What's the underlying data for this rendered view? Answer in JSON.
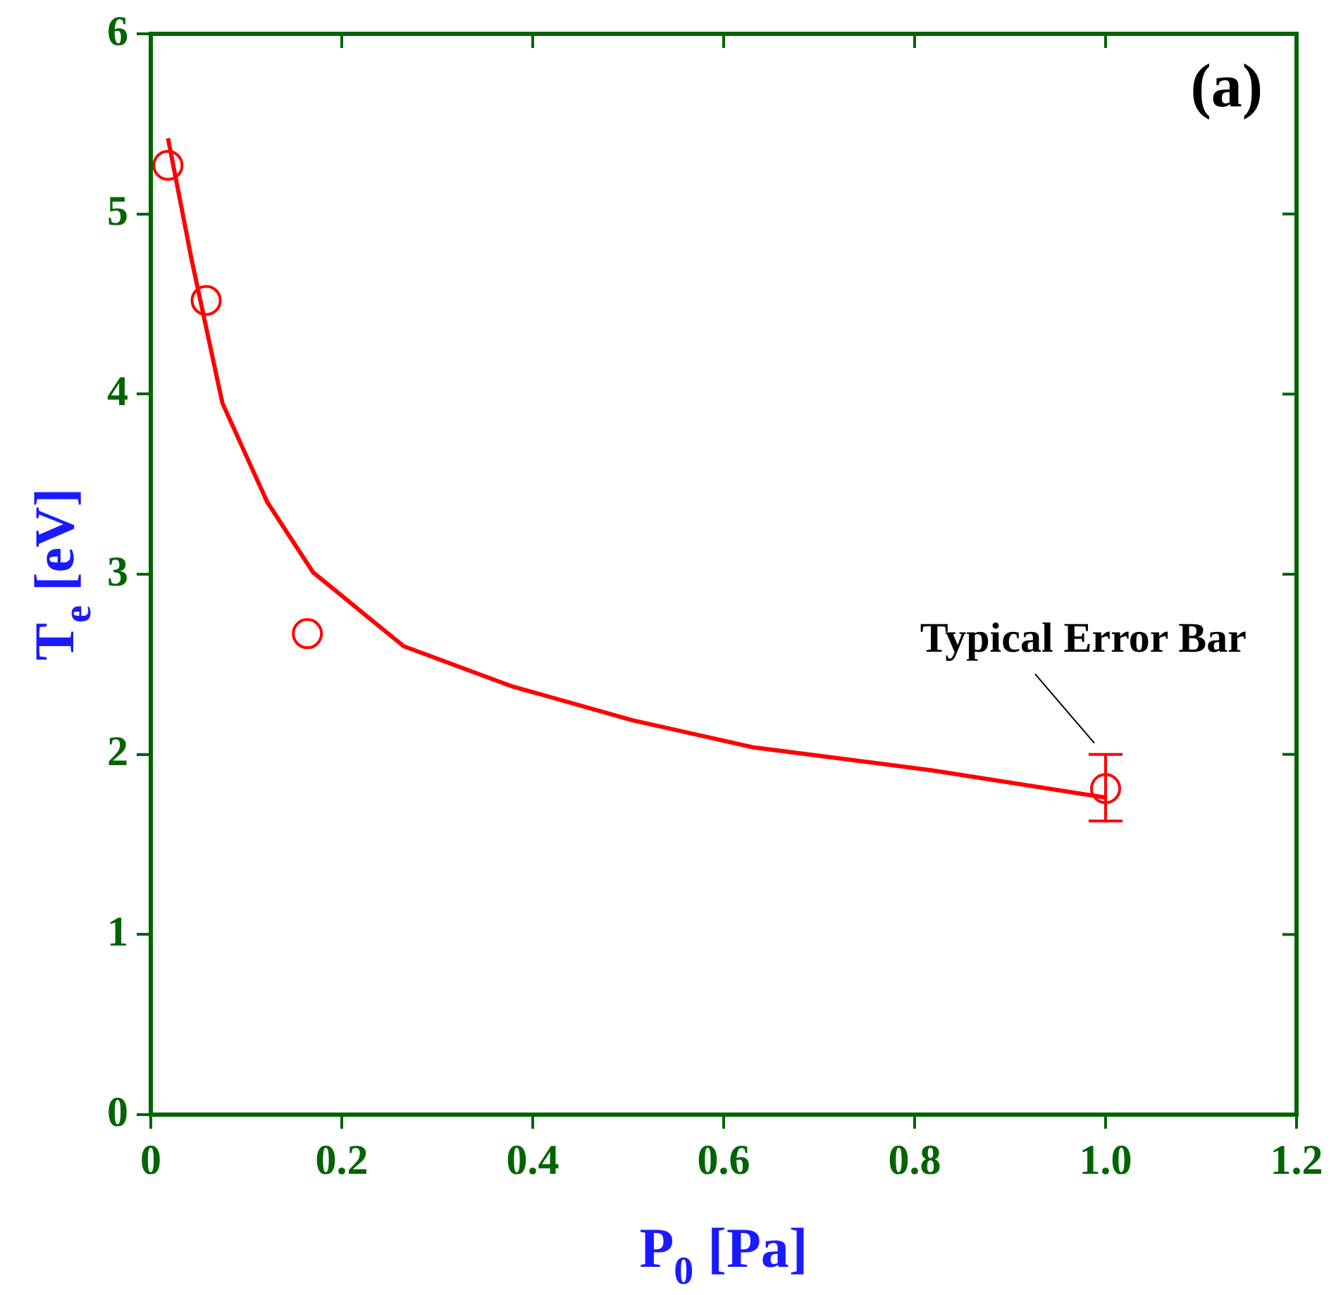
{
  "chart_data": {
    "type": "scatter",
    "xlabel": "P$_{0}$ [Pa]",
    "ylabel": "T$_{e}$ [eV]",
    "xlim": [
      0,
      1.2
    ],
    "xticks": [
      0,
      0.2,
      0.4,
      0.6,
      0.8,
      {
        "value": 1,
        "label": "1.0"
      },
      1.2
    ],
    "ylim": [
      0,
      6
    ],
    "yticks": [
      0,
      1,
      2,
      3,
      4,
      5,
      6
    ],
    "grid": false,
    "legend": false,
    "series": [
      {
        "type": "scatter",
        "color": "#ff0000",
        "marker": "circle",
        "x": [
          0.018,
          0.058,
          0.164,
          1.0
        ],
        "values": [
          5.27,
          4.52,
          2.67,
          1.81
        ],
        "errors": [
          null,
          null,
          null,
          [
            1.63,
            2.0
          ]
        ]
      },
      {
        "type": "line",
        "color": "#ff0000",
        "marker": "none",
        "line_style": "solid",
        "x": [
          0.018,
          0.043,
          0.075,
          0.122,
          0.17,
          0.265,
          0.377,
          0.504,
          0.63,
          0.82,
          1.0
        ],
        "values": [
          5.42,
          4.74,
          3.95,
          3.4,
          3.01,
          2.6,
          2.38,
          2.19,
          2.04,
          1.91,
          1.76
        ]
      }
    ],
    "annotations": [
      "(a)",
      {
        "text": "Typical Error Bar",
        "x": 1,
        "y": 2
      }
    ]
  }
}
